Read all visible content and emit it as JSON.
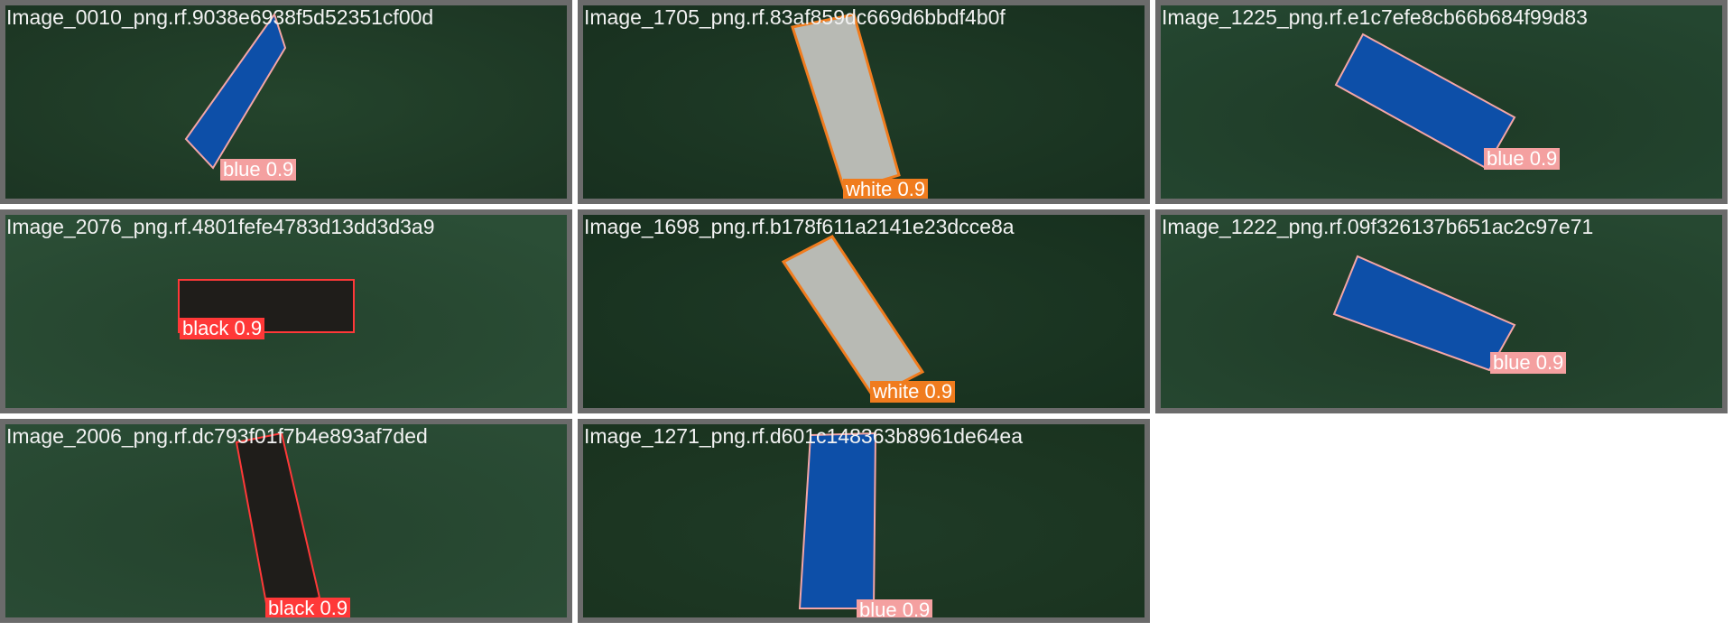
{
  "tiles": [
    {
      "title": "Image_0010_png.rf.9038e6938f5d52351cf00d",
      "label": "blue 0.9"
    },
    {
      "title": "Image_1705_png.rf.83af859dc669d6bbdf4b0f",
      "label": "white 0.9"
    },
    {
      "title": "Image_1225_png.rf.e1c7efe8cb66b684f99d83",
      "label": "blue 0.9"
    },
    {
      "title": "Image_2076_png.rf.4801fefe4783d13dd3d3a9",
      "label": "black 0.9"
    },
    {
      "title": "Image_1698_png.rf.b178f611a2141e23dcce8a",
      "label": "white 0.9"
    },
    {
      "title": "Image_1222_png.rf.09f326137b651ac2c97e71",
      "label": "blue 0.9"
    },
    {
      "title": "Image_2006_png.rf.dc793f01f7b4e893af7ded",
      "label": "black 0.9"
    },
    {
      "title": "Image_1271_png.rf.d601c148363b8961de64ea",
      "label": "blue 0.9"
    }
  ],
  "colors": {
    "blue_box": "#f4a6a6",
    "blue_fill": "#0d4fa8",
    "white_box": "#f07c1e",
    "white_fill": "#b8bab4",
    "black_box": "#ff3838",
    "black_fill": "#1f1d1a",
    "blue_label_bg": "#f4a0a0",
    "white_label_bg": "#f07c1e",
    "black_label_bg": "#ff3838",
    "background_green": "#1f3a26"
  }
}
